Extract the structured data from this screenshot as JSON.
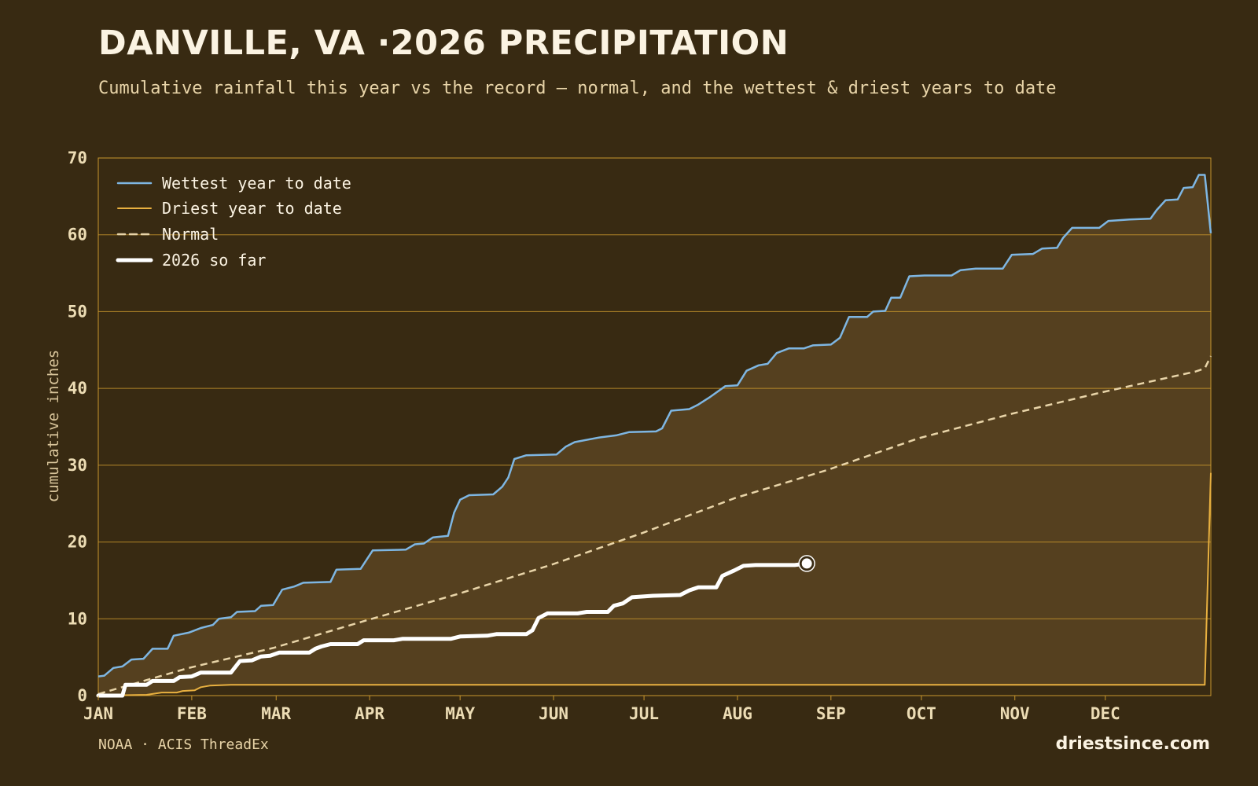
{
  "header": {
    "title": "DANVILLE, VA ·2026 PRECIPITATION",
    "subtitle": "Cumulative rainfall this year vs the record — normal, and the wettest & driest years to date"
  },
  "footer": {
    "source": "NOAA · ACIS ThreadEx",
    "brand": "driestsince.com"
  },
  "colors": {
    "background": "#382a12",
    "band_fill": "#55401f",
    "grid": "#c8962d",
    "wettest": "#7eb6e2",
    "driest": "#e8b040",
    "normal": "#e8d4a8",
    "current": "#ffffff"
  },
  "chart_data": {
    "type": "line",
    "title": "DANVILLE, VA ·2026 PRECIPITATION",
    "xlabel": "",
    "ylabel": "cumulative inches",
    "xlim": [
      1,
      365
    ],
    "ylim": [
      0,
      70
    ],
    "yticks": [
      0,
      10,
      20,
      30,
      40,
      50,
      60,
      70
    ],
    "month_ticks": [
      {
        "label": "JAN",
        "day": 1
      },
      {
        "label": "FEB",
        "day": 32
      },
      {
        "label": "MAR",
        "day": 60
      },
      {
        "label": "APR",
        "day": 91
      },
      {
        "label": "MAY",
        "day": 121
      },
      {
        "label": "JUN",
        "day": 152
      },
      {
        "label": "JUL",
        "day": 182
      },
      {
        "label": "AUG",
        "day": 213
      },
      {
        "label": "SEP",
        "day": 244
      },
      {
        "label": "OCT",
        "day": 274
      },
      {
        "label": "NOV",
        "day": 305
      },
      {
        "label": "DEC",
        "day": 335
      }
    ],
    "grid": true,
    "legend_position": "top-left",
    "series": [
      {
        "name": "Wettest year to date",
        "style": "solid",
        "points": [
          [
            1,
            2.5
          ],
          [
            3,
            2.6
          ],
          [
            6,
            3.6
          ],
          [
            9,
            3.8
          ],
          [
            12,
            4.7
          ],
          [
            16,
            4.8
          ],
          [
            19,
            6.1
          ],
          [
            24,
            6.1
          ],
          [
            26,
            7.8
          ],
          [
            31,
            8.2
          ],
          [
            35,
            8.8
          ],
          [
            39,
            9.2
          ],
          [
            41,
            10.0
          ],
          [
            45,
            10.2
          ],
          [
            47,
            10.9
          ],
          [
            53,
            11.0
          ],
          [
            55,
            11.7
          ],
          [
            59,
            11.8
          ],
          [
            62,
            13.8
          ],
          [
            66,
            14.2
          ],
          [
            69,
            14.7
          ],
          [
            78,
            14.8
          ],
          [
            80,
            16.4
          ],
          [
            88,
            16.5
          ],
          [
            92,
            18.9
          ],
          [
            103,
            19.0
          ],
          [
            106,
            19.7
          ],
          [
            109,
            19.8
          ],
          [
            112,
            20.6
          ],
          [
            117,
            20.8
          ],
          [
            119,
            23.8
          ],
          [
            121,
            25.5
          ],
          [
            124,
            26.1
          ],
          [
            132,
            26.2
          ],
          [
            135,
            27.2
          ],
          [
            137,
            28.4
          ],
          [
            139,
            30.8
          ],
          [
            143,
            31.3
          ],
          [
            153,
            31.4
          ],
          [
            156,
            32.4
          ],
          [
            159,
            33.0
          ],
          [
            167,
            33.6
          ],
          [
            173,
            33.9
          ],
          [
            177,
            34.3
          ],
          [
            186,
            34.4
          ],
          [
            188,
            34.8
          ],
          [
            191,
            37.1
          ],
          [
            197,
            37.3
          ],
          [
            200,
            37.9
          ],
          [
            204,
            38.9
          ],
          [
            209,
            40.3
          ],
          [
            213,
            40.4
          ],
          [
            216,
            42.3
          ],
          [
            220,
            43.0
          ],
          [
            223,
            43.2
          ],
          [
            226,
            44.6
          ],
          [
            230,
            45.2
          ],
          [
            235,
            45.2
          ],
          [
            238,
            45.6
          ],
          [
            244,
            45.7
          ],
          [
            247,
            46.6
          ],
          [
            250,
            49.3
          ],
          [
            256,
            49.3
          ],
          [
            258,
            50.0
          ],
          [
            262,
            50.1
          ],
          [
            264,
            51.8
          ],
          [
            267,
            51.8
          ],
          [
            270,
            54.6
          ],
          [
            275,
            54.7
          ],
          [
            284,
            54.7
          ],
          [
            287,
            55.4
          ],
          [
            292,
            55.6
          ],
          [
            301,
            55.6
          ],
          [
            304,
            57.4
          ],
          [
            311,
            57.5
          ],
          [
            314,
            58.2
          ],
          [
            319,
            58.3
          ],
          [
            321,
            59.6
          ],
          [
            324,
            60.9
          ],
          [
            333,
            60.9
          ],
          [
            336,
            61.8
          ],
          [
            343,
            62.0
          ],
          [
            350,
            62.1
          ],
          [
            352,
            63.2
          ],
          [
            355,
            64.5
          ],
          [
            359,
            64.6
          ],
          [
            361,
            66.1
          ],
          [
            364,
            66.2
          ],
          [
            366,
            67.8
          ],
          [
            368,
            67.8
          ],
          [
            370,
            60.2
          ]
        ]
      },
      {
        "name": "Driest year to date",
        "style": "solid",
        "points": [
          [
            1,
            0.0
          ],
          [
            17,
            0.1
          ],
          [
            22,
            0.4
          ],
          [
            27,
            0.4
          ],
          [
            29,
            0.6
          ],
          [
            33,
            0.7
          ],
          [
            35,
            1.1
          ],
          [
            38,
            1.3
          ],
          [
            45,
            1.4
          ],
          [
            100,
            1.4
          ],
          [
            200,
            1.4
          ],
          [
            300,
            1.4
          ],
          [
            368,
            1.4
          ],
          [
            370,
            29.0
          ]
        ]
      },
      {
        "name": "Normal",
        "style": "dashed",
        "points": [
          [
            1,
            0.2
          ],
          [
            31,
            3.6
          ],
          [
            59,
            6.2
          ],
          [
            90,
            9.8
          ],
          [
            120,
            13.2
          ],
          [
            151,
            17.0
          ],
          [
            181,
            21.1
          ],
          [
            212,
            25.7
          ],
          [
            243,
            29.4
          ],
          [
            273,
            33.5
          ],
          [
            304,
            36.7
          ],
          [
            334,
            39.5
          ],
          [
            365,
            42.2
          ],
          [
            368,
            42.6
          ],
          [
            370,
            44.2
          ]
        ]
      },
      {
        "name": "2026 so far",
        "style": "thick",
        "points": [
          [
            1,
            0.0
          ],
          [
            9,
            0.0
          ],
          [
            10,
            1.4
          ],
          [
            17,
            1.4
          ],
          [
            19,
            1.9
          ],
          [
            26,
            1.9
          ],
          [
            28,
            2.4
          ],
          [
            32,
            2.5
          ],
          [
            35,
            3.0
          ],
          [
            45,
            3.0
          ],
          [
            48,
            4.5
          ],
          [
            52,
            4.6
          ],
          [
            55,
            5.1
          ],
          [
            58,
            5.2
          ],
          [
            61,
            5.6
          ],
          [
            71,
            5.6
          ],
          [
            73,
            6.1
          ],
          [
            75,
            6.4
          ],
          [
            78,
            6.7
          ],
          [
            87,
            6.7
          ],
          [
            89,
            7.2
          ],
          [
            99,
            7.2
          ],
          [
            102,
            7.4
          ],
          [
            118,
            7.4
          ],
          [
            121,
            7.7
          ],
          [
            130,
            7.8
          ],
          [
            133,
            8.0
          ],
          [
            143,
            8.0
          ],
          [
            145,
            8.5
          ],
          [
            147,
            10.1
          ],
          [
            150,
            10.7
          ],
          [
            160,
            10.7
          ],
          [
            163,
            10.9
          ],
          [
            170,
            10.9
          ],
          [
            172,
            11.7
          ],
          [
            175,
            12.0
          ],
          [
            178,
            12.8
          ],
          [
            185,
            13.0
          ],
          [
            194,
            13.1
          ],
          [
            197,
            13.7
          ],
          [
            200,
            14.1
          ],
          [
            206,
            14.1
          ],
          [
            208,
            15.6
          ],
          [
            212,
            16.3
          ],
          [
            215,
            16.9
          ],
          [
            219,
            17.0
          ],
          [
            232,
            17.0
          ],
          [
            236,
            17.2
          ]
        ]
      }
    ],
    "current_point": {
      "x": 236,
      "y": 17.2
    }
  }
}
